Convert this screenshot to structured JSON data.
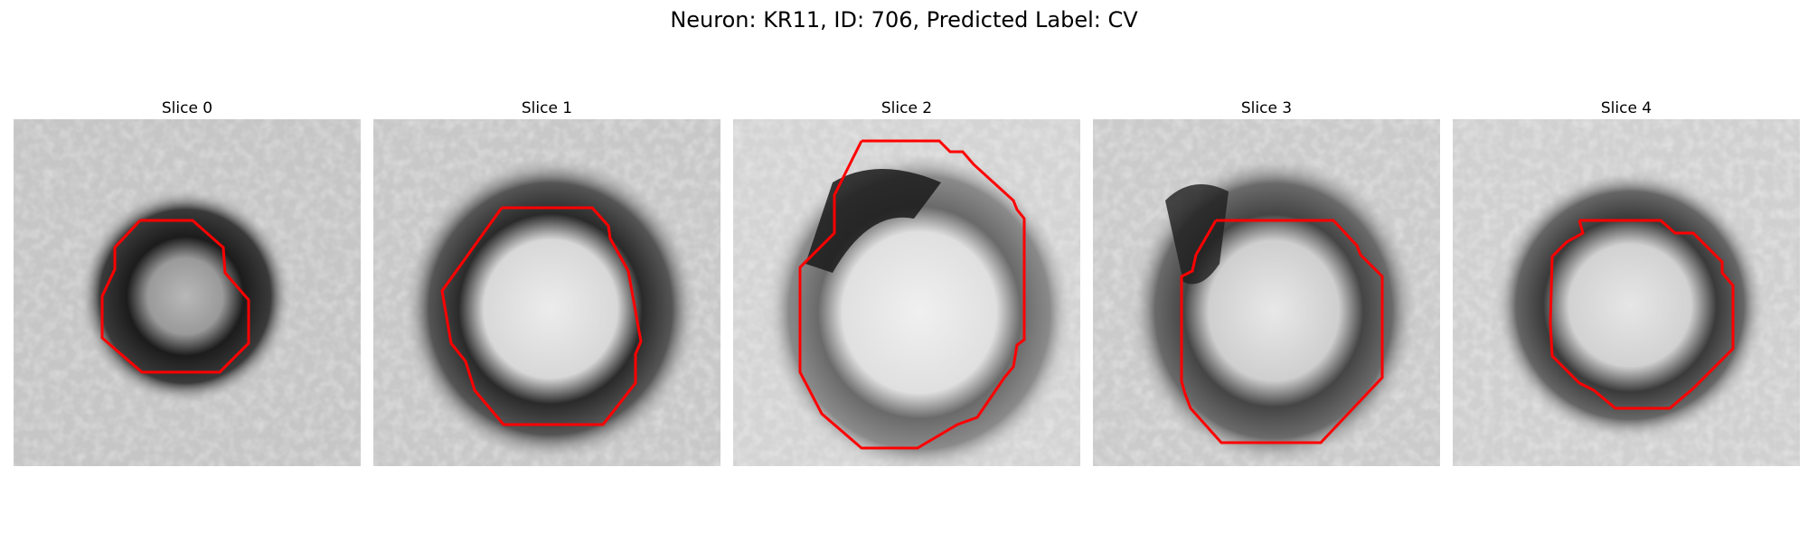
{
  "figure": {
    "title": "Neuron: KR11, ID: 706, Predicted Label: CV"
  },
  "contour_color": "#ff0000",
  "panels": [
    {
      "title": "Slice 0"
    },
    {
      "title": "Slice 1"
    },
    {
      "title": "Slice 2"
    },
    {
      "title": "Slice 3"
    },
    {
      "title": "Slice 4"
    }
  ]
}
